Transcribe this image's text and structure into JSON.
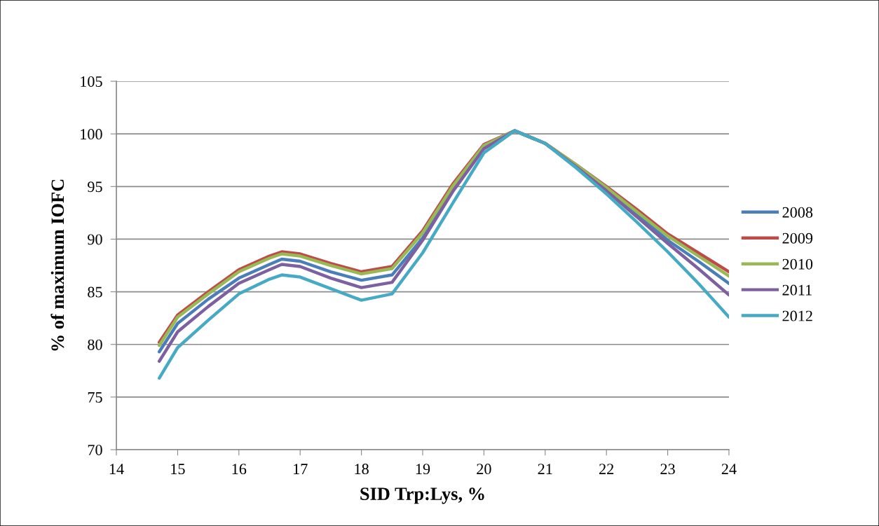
{
  "chart_data": {
    "type": "line",
    "xlabel": "SID Trp:Lys, %",
    "ylabel": "% of maximum IOFC",
    "x": [
      14.7,
      15,
      15.5,
      16,
      16.5,
      16.7,
      17,
      17.5,
      18,
      18.5,
      19,
      19.5,
      20,
      20.5,
      21,
      21.5,
      22,
      22.5,
      23,
      23.5,
      24
    ],
    "series": [
      {
        "name": "2008",
        "color": "#4a7ebb",
        "values": [
          79.3,
          82.0,
          84.3,
          86.3,
          87.6,
          88.1,
          87.9,
          86.9,
          86.1,
          86.6,
          90.1,
          94.8,
          98.7,
          100.3,
          99.1,
          97.0,
          94.8,
          92.4,
          89.9,
          87.9,
          85.8
        ]
      },
      {
        "name": "2009",
        "color": "#be4b48",
        "values": [
          80.2,
          82.8,
          85.0,
          87.1,
          88.4,
          88.8,
          88.6,
          87.7,
          86.9,
          87.4,
          90.8,
          95.3,
          99.0,
          100.3,
          99.1,
          97.1,
          95.0,
          92.8,
          90.5,
          88.7,
          86.9
        ]
      },
      {
        "name": "2010",
        "color": "#98b954",
        "values": [
          79.9,
          82.6,
          84.8,
          86.9,
          88.2,
          88.6,
          88.4,
          87.5,
          86.7,
          87.2,
          90.6,
          95.1,
          98.9,
          100.3,
          99.1,
          97.1,
          94.9,
          92.6,
          90.3,
          88.4,
          86.5
        ]
      },
      {
        "name": "2011",
        "color": "#7d60a0",
        "values": [
          78.4,
          81.2,
          83.6,
          85.8,
          87.1,
          87.6,
          87.4,
          86.3,
          85.4,
          85.9,
          89.9,
          94.6,
          98.6,
          100.3,
          99.1,
          96.9,
          94.6,
          92.1,
          89.6,
          87.2,
          84.7
        ]
      },
      {
        "name": "2012",
        "color": "#46aac5",
        "values": [
          76.8,
          79.7,
          82.3,
          84.8,
          86.2,
          86.6,
          86.4,
          85.3,
          84.2,
          84.8,
          88.7,
          93.5,
          98.2,
          100.3,
          99.1,
          96.8,
          94.3,
          91.6,
          88.8,
          85.8,
          82.6
        ]
      }
    ],
    "xlim": [
      14,
      24
    ],
    "xticks": [
      14,
      15,
      16,
      17,
      18,
      19,
      20,
      21,
      22,
      23,
      24
    ],
    "ylim": [
      70,
      105
    ],
    "yticks": [
      70,
      75,
      80,
      85,
      90,
      95,
      100,
      105
    ],
    "grid": "y",
    "legend": "right",
    "marker": "none",
    "line_style": "solid"
  }
}
